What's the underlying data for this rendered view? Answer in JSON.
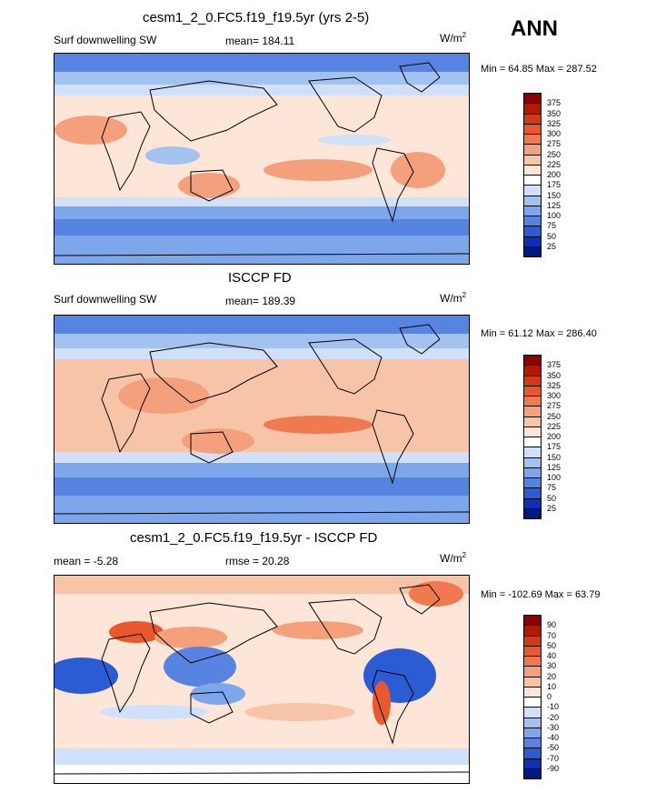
{
  "season": "ANN",
  "panels": [
    {
      "title": "cesm1_2_0.FC5.f19_f19.5yr (yrs 2-5)",
      "left_label": "Surf downwelling SW",
      "center_label": "mean= 184.11",
      "units": "W/m",
      "units_sup": "2",
      "minmax": "Min =  64.85 Max = 287.52",
      "colorbar_ticks": [
        "375",
        "350",
        "325",
        "300",
        "275",
        "250",
        "225",
        "200",
        "175",
        "150",
        "125",
        "100",
        "75",
        "50",
        "25"
      ],
      "colorbar_colors": [
        "#8b0000",
        "#b01a00",
        "#d03a14",
        "#e8582c",
        "#f07a50",
        "#f4a07c",
        "#f8c4a8",
        "#fde6d8",
        "#ffffff",
        "#cfe0f8",
        "#a4c2f0",
        "#7ea6ea",
        "#5684e0",
        "#2c5cd4",
        "#0c30b8",
        "#001a80"
      ]
    },
    {
      "title": "ISCCP FD",
      "left_label": "Surf downwelling SW",
      "center_label": "mean= 189.39",
      "units": "W/m",
      "units_sup": "2",
      "minmax": "Min =  61.12 Max = 286.40",
      "colorbar_ticks": [
        "375",
        "350",
        "325",
        "300",
        "275",
        "250",
        "225",
        "200",
        "175",
        "150",
        "125",
        "100",
        "75",
        "50",
        "25"
      ],
      "colorbar_colors": [
        "#8b0000",
        "#b01a00",
        "#d03a14",
        "#e8582c",
        "#f07a50",
        "#f4a07c",
        "#f8c4a8",
        "#fde6d8",
        "#ffffff",
        "#cfe0f8",
        "#a4c2f0",
        "#7ea6ea",
        "#5684e0",
        "#2c5cd4",
        "#0c30b8",
        "#001a80"
      ]
    },
    {
      "title": "cesm1_2_0.FC5.f19_f19.5yr - ISCCP FD",
      "left_label": "mean =  -5.28",
      "center_label": "rmse =  20.28",
      "units": "W/m",
      "units_sup": "2",
      "minmax": "Min = -102.69 Max =  63.79",
      "colorbar_ticks": [
        "90",
        "70",
        "50",
        "40",
        "30",
        "20",
        "10",
        "0",
        "-10",
        "-20",
        "-30",
        "-40",
        "-50",
        "-70",
        "-90"
      ],
      "colorbar_colors": [
        "#8b0000",
        "#b01a00",
        "#d03a14",
        "#e8582c",
        "#f07a50",
        "#f4a07c",
        "#f8c4a8",
        "#fde6d8",
        "#ffffff",
        "#cfe0f8",
        "#a4c2f0",
        "#7ea6ea",
        "#5684e0",
        "#2c5cd4",
        "#0c30b8",
        "#001a80"
      ]
    }
  ]
}
